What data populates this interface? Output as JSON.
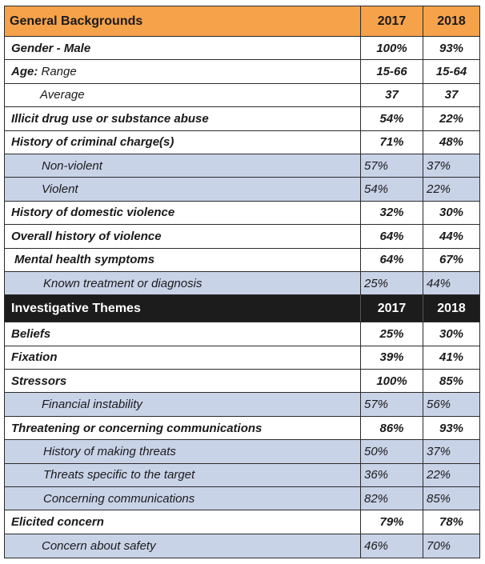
{
  "general": {
    "title": "General Backgrounds",
    "col_a": "2017",
    "col_b": "2018",
    "rows": [
      {
        "label": "Gender - Male",
        "a": "100%",
        "b": "93%"
      },
      {
        "label_lead": "Age:",
        "label_rest": " Range",
        "a": "15-66",
        "b": "15-64"
      },
      {
        "label": "Average",
        "a": "37",
        "b": "37"
      },
      {
        "label": "Illicit drug use or substance abuse",
        "a": "54%",
        "b": "22%"
      },
      {
        "label": "History of criminal charge(s)",
        "a": "71%",
        "b": "48%"
      },
      {
        "label": "Non-violent",
        "a": "57%",
        "b": "37%"
      },
      {
        "label": "Violent",
        "a": "54%",
        "b": "22%"
      },
      {
        "label": "History of domestic violence",
        "a": "32%",
        "b": "30%"
      },
      {
        "label": "Overall history of violence",
        "a": "64%",
        "b": "44%"
      },
      {
        "label": "Mental health symptoms",
        "a": "64%",
        "b": "67%"
      },
      {
        "label": "Known treatment or diagnosis",
        "a": "25%",
        "b": "44%"
      }
    ]
  },
  "themes": {
    "title": "Investigative Themes",
    "col_a": "2017",
    "col_b": "2018",
    "rows": [
      {
        "label": "Beliefs",
        "a": "25%",
        "b": "30%"
      },
      {
        "label": "Fixation",
        "a": "39%",
        "b": "41%"
      },
      {
        "label": "Stressors",
        "a": "100%",
        "b": "85%"
      },
      {
        "label": "Financial instability",
        "a": "57%",
        "b": "56%"
      },
      {
        "label": "Threatening or concerning communications",
        "a": "86%",
        "b": "93%"
      },
      {
        "label": "History of making threats",
        "a": "50%",
        "b": "37%"
      },
      {
        "label": "Threats specific to the target",
        "a": "36%",
        "b": "22%"
      },
      {
        "label": "Concerning communications",
        "a": "82%",
        "b": "85%"
      },
      {
        "label": "Elicited concern",
        "a": "79%",
        "b": "78%"
      },
      {
        "label": "Concern about safety",
        "a": "46%",
        "b": "70%"
      }
    ]
  },
  "colors": {
    "orange_header": "#f5a24a",
    "dark_header": "#1c1c1c",
    "sub_row": "#c9d3e8"
  }
}
